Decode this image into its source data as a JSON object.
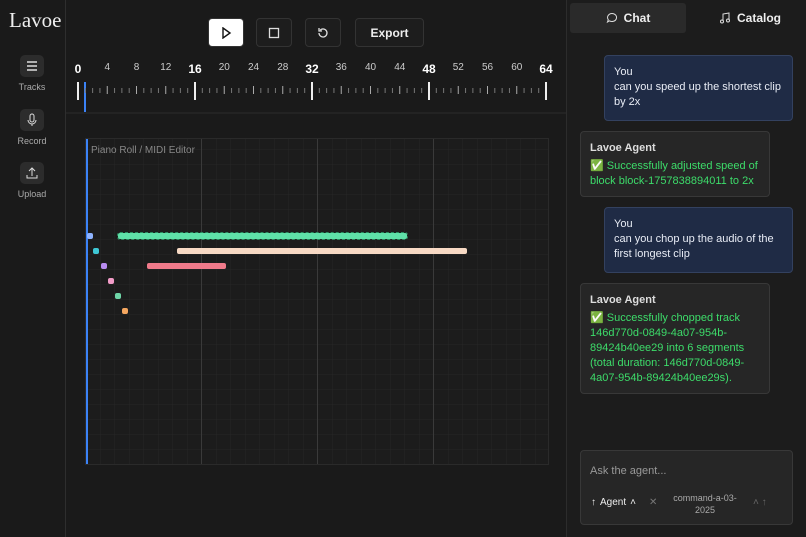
{
  "sidebar": {
    "logo": "Lavoe",
    "items": [
      {
        "label": "Tracks"
      },
      {
        "label": "Record"
      },
      {
        "label": "Upload"
      }
    ]
  },
  "toolbar": {
    "export": "Export"
  },
  "ruler": {
    "labels": [
      0,
      4,
      8,
      12,
      16,
      20,
      24,
      28,
      32,
      36,
      40,
      44,
      48,
      52,
      56,
      60,
      64
    ]
  },
  "piano_roll": {
    "title": "Piano Roll / MIDI Editor"
  },
  "chat": {
    "tabs": [
      "Chat",
      "Catalog"
    ],
    "messages": [
      {
        "sender": "You",
        "text": "can you speed up the shortest clip by 2x"
      },
      {
        "sender": "Lavoe Agent",
        "text": "✅ Successfully adjusted speed of block block-1757838894011 to 2x"
      },
      {
        "sender": "You",
        "text": "can you chop up the audio of the first longest clip"
      },
      {
        "sender": "Lavoe Agent",
        "text": "✅ Successfully chopped track 146d770d-0849-4a07-954b-89424b40ee29 into 6 segments (total duration: 146d770d-0849-4a07-954b-89424b40ee29s)."
      }
    ],
    "input": {
      "placeholder": "Ask the agent...",
      "mode": "Agent",
      "model": "command-a-03-2025"
    }
  }
}
